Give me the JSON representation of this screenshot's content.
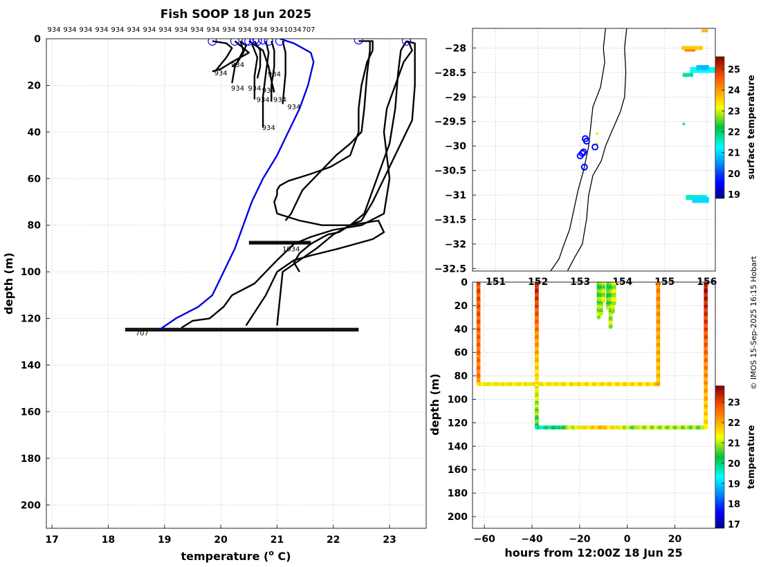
{
  "chart_data": [
    {
      "type": "line",
      "title": "Fish SOOP 18 Jun 2025",
      "xlabel": "temperature (°C)",
      "xlabel_main": "temperature (",
      "xlabel_sup": "o",
      "xlabel_end": " C)",
      "ylabel": "depth (m)",
      "xlim": [
        16.9,
        23.65
      ],
      "ylim": [
        210,
        0
      ],
      "xticks": [
        17,
        18,
        19,
        20,
        21,
        22,
        23
      ],
      "yticks": [
        0,
        20,
        40,
        60,
        80,
        100,
        120,
        140,
        160,
        180,
        200
      ],
      "profile_ids_top": [
        "934",
        "934",
        "934",
        "934",
        "934",
        "934",
        "934",
        "934",
        "934",
        "934",
        "934",
        "934",
        "934",
        "934",
        "934",
        "1034",
        "707"
      ],
      "series": [
        {
          "name": "707",
          "color": "#0000dd",
          "temps": [
            21.05,
            21.3,
            21.6,
            21.65,
            21.55,
            21.4,
            21.2,
            21.0,
            20.75,
            20.55,
            20.4,
            20.25,
            20.05,
            19.95,
            19.85,
            19.6,
            19.2,
            18.9
          ],
          "depths": [
            0,
            2,
            6,
            10,
            20,
            30,
            40,
            50,
            60,
            70,
            80,
            90,
            100,
            105,
            110,
            115,
            120,
            125
          ]
        },
        {
          "name": "1034",
          "color": "#000000",
          "temps": [
            22.45,
            22.7,
            22.7,
            22.6,
            22.5,
            22.45,
            22.45,
            22.3,
            21.95,
            21.6,
            21.2,
            21.05,
            21.0,
            21.0,
            20.95,
            21.0,
            21.4,
            21.8,
            22.3,
            22.8,
            22.9,
            22.7,
            22.1,
            21.6,
            21.3,
            21.0,
            20.8,
            20.45
          ],
          "depths": [
            1,
            1,
            5,
            10,
            20,
            30,
            40,
            50,
            55,
            58,
            61,
            63,
            65,
            67,
            70,
            75,
            78,
            80,
            80,
            78,
            83,
            86,
            90,
            93,
            95,
            100,
            110,
            123
          ]
        },
        {
          "name": "934",
          "color": "#000000",
          "temps": [
            23.3,
            23.35,
            23.4,
            23.25,
            23.1,
            22.95,
            22.9,
            23.0,
            22.9,
            22.5,
            22.0,
            21.6,
            21.3,
            21.0,
            20.6,
            20.2,
            20.05,
            19.8,
            19.5,
            19.3
          ],
          "depths": [
            1,
            2,
            5,
            10,
            20,
            30,
            40,
            60,
            75,
            80,
            82,
            85,
            88,
            95,
            105,
            110,
            115,
            120,
            121,
            124
          ]
        },
        {
          "name": "934",
          "color": "#000000",
          "temps": [
            23.3,
            23.45,
            23.45,
            23.45,
            23.4,
            23.3,
            23.0,
            22.7,
            22.5,
            22.3,
            22.0,
            21.7,
            21.4,
            21.1,
            21.0
          ],
          "depths": [
            1,
            2,
            5,
            20,
            35,
            40,
            55,
            70,
            78,
            80,
            84,
            90,
            95,
            100,
            123
          ]
        },
        {
          "name": "934",
          "color": "#000000",
          "temps": [
            23.3,
            23.2,
            23.15,
            23.1,
            23.0,
            22.85,
            22.7,
            22.55,
            22.3,
            22.1,
            21.9,
            21.6,
            21.4,
            21.3,
            21.4
          ],
          "depths": [
            1,
            5,
            15,
            30,
            45,
            55,
            65,
            75,
            80,
            83,
            84,
            88,
            92,
            96,
            100
          ]
        },
        {
          "name": "934",
          "color": "#000000",
          "temps": [
            22.65,
            22.65,
            22.6,
            22.55,
            22.5,
            22.3,
            22.05,
            21.85,
            21.65,
            21.45,
            21.35,
            21.25,
            21.15
          ],
          "depths": [
            1,
            5,
            15,
            30,
            40,
            45,
            50,
            55,
            60,
            65,
            70,
            75,
            78
          ]
        },
        {
          "name": "934",
          "color": "#000000",
          "temps": [
            20.55,
            20.65,
            20.6,
            20.6
          ],
          "depths": [
            2,
            8,
            16,
            26
          ]
        },
        {
          "name": "934",
          "color": "#000000",
          "temps": [
            20.35,
            20.4,
            20.25,
            20.2
          ],
          "depths": [
            1,
            5,
            12,
            19
          ]
        },
        {
          "name": "934",
          "color": "#000000",
          "temps": [
            20.25,
            20.5,
            20.2,
            20.0,
            19.85
          ],
          "depths": [
            1,
            6,
            10,
            13,
            14
          ]
        },
        {
          "name": "934",
          "color": "#000000",
          "temps": [
            20.5,
            20.75,
            20.85,
            20.9,
            20.95
          ],
          "depths": [
            1,
            5,
            12,
            18,
            23
          ]
        },
        {
          "name": "934",
          "color": "#000000",
          "temps": [
            20.8,
            20.85,
            20.8,
            20.75,
            20.75
          ],
          "depths": [
            1,
            6,
            15,
            25,
            38
          ]
        },
        {
          "name": "934",
          "color": "#000000",
          "temps": [
            20.9,
            20.95,
            20.95,
            20.9,
            20.9
          ],
          "depths": [
            1,
            5,
            12,
            20,
            27
          ]
        },
        {
          "name": "934",
          "color": "#000000",
          "temps": [
            21.1,
            21.15,
            21.15,
            21.1
          ],
          "depths": [
            1,
            6,
            15,
            28
          ]
        },
        {
          "name": "934",
          "color": "#000000",
          "temps": [
            20.6,
            20.7,
            20.7,
            20.65
          ],
          "depths": [
            1,
            5,
            12,
            17
          ]
        },
        {
          "name": "934",
          "color": "#000000",
          "temps": [
            20.35,
            20.45,
            20.4,
            20.3,
            20.2
          ],
          "depths": [
            1,
            3,
            6,
            10,
            12
          ]
        },
        {
          "name": "934",
          "color": "#000000",
          "temps": [
            19.85,
            20.1,
            20.2,
            20.1,
            20.0,
            19.9
          ],
          "depths": [
            1,
            2,
            4,
            8,
            11,
            14
          ]
        }
      ],
      "horizontal_tracks": [
        {
          "temp_min": 18.3,
          "temp_max": 22.45,
          "depth": 124.8
        },
        {
          "temp_min": 20.5,
          "temp_max": 21.6,
          "depth": 87.5
        }
      ],
      "circles": [
        {
          "temp": 19.85,
          "depth": 1
        },
        {
          "temp": 20.25,
          "depth": 1
        },
        {
          "temp": 20.45,
          "depth": 1
        },
        {
          "temp": 20.5,
          "depth": 1
        },
        {
          "temp": 20.6,
          "depth": 0.5
        },
        {
          "temp": 20.65,
          "depth": 1
        },
        {
          "temp": 20.75,
          "depth": 0.5
        },
        {
          "temp": 20.85,
          "depth": 1
        },
        {
          "temp": 21.05,
          "depth": 1
        },
        {
          "temp": 22.45,
          "depth": 0.5
        },
        {
          "temp": 23.3,
          "depth": 1
        }
      ],
      "profile_labels": [
        {
          "text": "934",
          "temp": 20.3,
          "depth": 11
        },
        {
          "text": "934",
          "temp": 20.0,
          "depth": 14.5
        },
        {
          "text": "934",
          "temp": 20.95,
          "depth": 15
        },
        {
          "text": "934",
          "temp": 20.3,
          "depth": 21
        },
        {
          "text": "934",
          "temp": 20.6,
          "depth": 21
        },
        {
          "text": "934",
          "temp": 20.85,
          "depth": 22
        },
        {
          "text": "934",
          "temp": 20.75,
          "depth": 26
        },
        {
          "text": "934",
          "temp": 21.05,
          "depth": 26
        },
        {
          "text": "934",
          "temp": 21.3,
          "depth": 29
        },
        {
          "text": "934",
          "temp": 20.85,
          "depth": 38
        },
        {
          "text": "1034",
          "temp": 21.25,
          "depth": 90
        },
        {
          "text": "707",
          "temp": 18.6,
          "depth": 126
        }
      ]
    },
    {
      "type": "heatmap",
      "subtype": "map",
      "xlim": [
        150.45,
        156.2
      ],
      "ylim": [
        -32.55,
        -27.6
      ],
      "xticks": [
        151,
        152,
        153,
        154,
        155,
        156
      ],
      "yticks": [
        -28,
        -28.5,
        -29,
        -29.5,
        -30,
        -30.5,
        -31,
        -31.5,
        -32,
        -32.5
      ],
      "colorbar_label": "surface temperature",
      "colorbar_range": [
        18.8,
        25.6
      ],
      "colorbar_ticks": [
        19,
        20,
        21,
        22,
        23,
        24,
        25
      ],
      "coastline": [
        [
          153.6,
          -27.6
        ],
        [
          153.55,
          -28.0
        ],
        [
          153.58,
          -28.3
        ],
        [
          153.48,
          -28.8
        ],
        [
          153.3,
          -29.2
        ],
        [
          153.25,
          -29.6
        ],
        [
          153.2,
          -30.0
        ],
        [
          153.08,
          -30.5
        ],
        [
          152.95,
          -30.9
        ],
        [
          152.85,
          -31.3
        ],
        [
          152.75,
          -31.7
        ],
        [
          152.6,
          -32.05
        ],
        [
          152.5,
          -32.3
        ],
        [
          152.3,
          -32.55
        ]
      ],
      "contour": [
        [
          154.1,
          -27.6
        ],
        [
          154.05,
          -28.0
        ],
        [
          154.08,
          -28.5
        ],
        [
          154.05,
          -29.0
        ],
        [
          153.95,
          -29.3
        ],
        [
          153.75,
          -29.7
        ],
        [
          153.6,
          -30.0
        ],
        [
          153.5,
          -30.3
        ],
        [
          153.3,
          -30.6
        ],
        [
          153.2,
          -31.0
        ],
        [
          153.15,
          -31.5
        ],
        [
          153.05,
          -32.0
        ],
        [
          152.85,
          -32.3
        ],
        [
          152.7,
          -32.55
        ]
      ],
      "sst_patches": [
        {
          "lon": 155.65,
          "lat": -28.0,
          "w": 0.5,
          "h": 0.08,
          "temp": 23.6
        },
        {
          "lon": 155.6,
          "lat": -28.05,
          "w": 0.25,
          "h": 0.05,
          "temp": 24.2
        },
        {
          "lon": 155.95,
          "lat": -27.65,
          "w": 0.15,
          "h": 0.06,
          "temp": 23.8
        },
        {
          "lon": 156.0,
          "lat": -28.45,
          "w": 0.8,
          "h": 0.12,
          "temp": 21.3
        },
        {
          "lon": 155.9,
          "lat": -28.4,
          "w": 0.3,
          "h": 0.1,
          "temp": 20.8
        },
        {
          "lon": 155.55,
          "lat": -28.55,
          "w": 0.25,
          "h": 0.08,
          "temp": 21.7
        },
        {
          "lon": 155.75,
          "lat": -31.05,
          "w": 0.5,
          "h": 0.1,
          "temp": 21.5
        },
        {
          "lon": 155.85,
          "lat": -31.1,
          "w": 0.4,
          "h": 0.12,
          "temp": 21.0
        },
        {
          "lon": 155.45,
          "lat": -29.55,
          "w": 0.06,
          "h": 0.05,
          "temp": 21.6
        },
        {
          "lon": 153.4,
          "lat": -29.75,
          "w": 0.05,
          "h": 0.05,
          "temp": 23.5
        },
        {
          "lon": 153.4,
          "lat": -29.95,
          "w": 0.05,
          "h": 0.05,
          "temp": 23.1
        }
      ],
      "stations": [
        {
          "lon": 153.12,
          "lat": -29.85
        },
        {
          "lon": 153.15,
          "lat": -29.9
        },
        {
          "lon": 153.05,
          "lat": -30.15
        },
        {
          "lon": 153.0,
          "lat": -30.2
        },
        {
          "lon": 153.08,
          "lat": -30.12
        },
        {
          "lon": 153.35,
          "lat": -30.02
        },
        {
          "lon": 153.1,
          "lat": -30.43
        }
      ],
      "credit": "© IMOS 15-Sep-2025 16:15 Hobart"
    },
    {
      "type": "scatter",
      "xlabel": "hours from 12:00Z 18 Jun 25",
      "ylabel": "depth (m)",
      "xlim": [
        -65,
        37
      ],
      "ylim": [
        210,
        0
      ],
      "xticks": [
        -60,
        -40,
        -20,
        0,
        20
      ],
      "yticks": [
        0,
        20,
        40,
        60,
        80,
        100,
        120,
        140,
        160,
        180,
        200
      ],
      "colorbar_label": "temperature",
      "colorbar_range": [
        16.8,
        23.8
      ],
      "colorbar_ticks": [
        17,
        18,
        19,
        20,
        21,
        22,
        23
      ],
      "segments": [
        {
          "x0": -62.5,
          "x1": -62.5,
          "d0": 0,
          "d1": 87,
          "t0": 22.9,
          "t1": 22.4
        },
        {
          "x0": -62.5,
          "x1": 13,
          "d0": 87,
          "d1": 87,
          "t0": 21.4,
          "t1": 21.6
        },
        {
          "x0": 13,
          "x1": 13,
          "d0": 0,
          "d1": 87,
          "t0": 22.4,
          "t1": 21.8
        },
        {
          "x0": -38,
          "x1": -38,
          "d0": 0,
          "d1": 124,
          "t0": 23.4,
          "t1": 20.5
        },
        {
          "x0": -38,
          "x1": -25,
          "d0": 124,
          "d1": 124,
          "t0": 19.6,
          "t1": 20.4
        },
        {
          "x0": -25,
          "x1": -10,
          "d0": 124,
          "d1": 124,
          "t0": 21.0,
          "t1": 21.9
        },
        {
          "x0": -10,
          "x1": 5,
          "d0": 124,
          "d1": 124,
          "t0": 21.8,
          "t1": 20.6
        },
        {
          "x0": 5,
          "x1": 33,
          "d0": 124,
          "d1": 124,
          "t0": 21.0,
          "t1": 20.8
        },
        {
          "x0": 33,
          "x1": 33,
          "d0": 0,
          "d1": 124,
          "t0": 23.6,
          "t1": 21.5
        },
        {
          "x0": -12,
          "x1": -12,
          "d0": 0,
          "d1": 30,
          "t0": 20.4,
          "t1": 21.0
        },
        {
          "x0": -11,
          "x1": -11,
          "d0": 0,
          "d1": 27,
          "t0": 20.6,
          "t1": 20.9
        },
        {
          "x0": -10,
          "x1": -10,
          "d0": 0,
          "d1": 16,
          "t0": 20.8,
          "t1": 21.0
        },
        {
          "x0": -8,
          "x1": -8,
          "d0": 0,
          "d1": 22,
          "t0": 20.3,
          "t1": 20.7
        },
        {
          "x0": -7,
          "x1": -7,
          "d0": 0,
          "d1": 38,
          "t0": 20.5,
          "t1": 21.0
        },
        {
          "x0": -6,
          "x1": -6,
          "d0": 0,
          "d1": 25,
          "t0": 20.7,
          "t1": 21.1
        },
        {
          "x0": -5.5,
          "x1": -5.5,
          "d0": 0,
          "d1": 18,
          "t0": 20.9,
          "t1": 21.2
        }
      ]
    }
  ]
}
